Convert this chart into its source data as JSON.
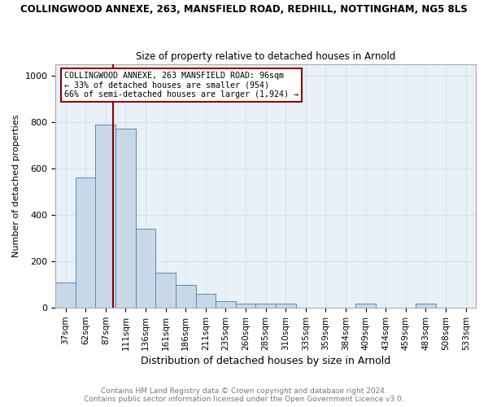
{
  "title": "COLLINGWOOD ANNEXE, 263, MANSFIELD ROAD, REDHILL, NOTTINGHAM, NG5 8LS",
  "subtitle": "Size of property relative to detached houses in Arnold",
  "xlabel": "Distribution of detached houses by size in Arnold",
  "ylabel": "Number of detached properties",
  "bin_labels": [
    "37sqm",
    "62sqm",
    "87sqm",
    "111sqm",
    "136sqm",
    "161sqm",
    "186sqm",
    "211sqm",
    "235sqm",
    "260sqm",
    "285sqm",
    "310sqm",
    "335sqm",
    "359sqm",
    "384sqm",
    "409sqm",
    "434sqm",
    "459sqm",
    "483sqm",
    "508sqm",
    "533sqm"
  ],
  "bar_heights": [
    110,
    560,
    790,
    770,
    340,
    150,
    100,
    60,
    30,
    20,
    20,
    20,
    0,
    0,
    0,
    20,
    0,
    0,
    20,
    0,
    0
  ],
  "bar_color": "#c8d8e8",
  "bar_edge_color": "#5a8ab0",
  "vline_color": "#8b0000",
  "annotation_title": "COLLINGWOOD ANNEXE, 263 MANSFIELD ROAD: 96sqm",
  "annotation_line1": "← 33% of detached houses are smaller (954)",
  "annotation_line2": "66% of semi-detached houses are larger (1,924) →",
  "annotation_box_color": "#8b0000",
  "ylim": [
    0,
    1050
  ],
  "footer1": "Contains HM Land Registry data © Crown copyright and database right 2024.",
  "footer2": "Contains public sector information licensed under the Open Government Licence v3.0.",
  "background_color": "#ffffff",
  "plot_bg_color": "#e8f0f8",
  "grid_color": "#d0d8e0",
  "vline_pos": 2.375
}
